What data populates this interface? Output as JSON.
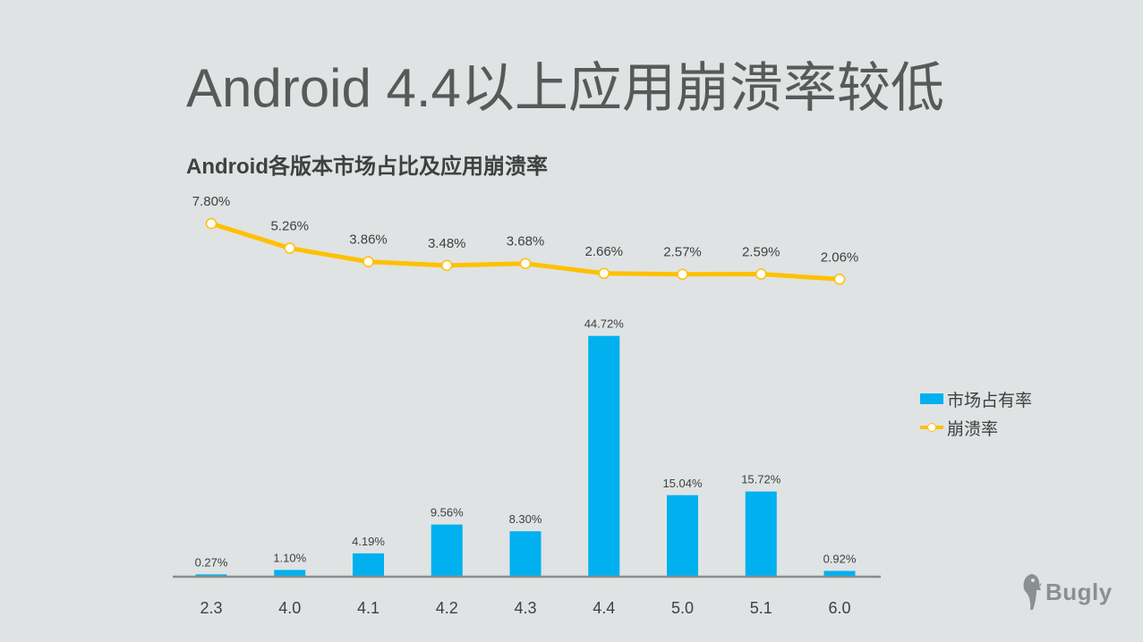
{
  "slide": {
    "title": "Android 4.4以上应用崩溃率较低"
  },
  "chart_data": {
    "type": "bar",
    "title": "Android各版本市场占比及应用崩溃率",
    "categories": [
      "2.3",
      "4.0",
      "4.1",
      "4.2",
      "4.3",
      "4.4",
      "5.0",
      "5.1",
      "6.0"
    ],
    "series": [
      {
        "name": "市场占有率",
        "type": "bar",
        "color": "#00b0ef",
        "values": [
          0.27,
          1.1,
          4.19,
          9.56,
          8.3,
          44.72,
          15.04,
          15.72,
          0.92
        ],
        "labels": [
          "0.27%",
          "1.10%",
          "4.19%",
          "9.56%",
          "8.30%",
          "44.72%",
          "15.04%",
          "15.72%",
          "0.92%"
        ]
      },
      {
        "name": "崩溃率",
        "type": "line",
        "color": "#ffc000",
        "values": [
          7.8,
          5.26,
          3.86,
          3.48,
          3.68,
          2.66,
          2.57,
          2.59,
          2.06
        ],
        "labels": [
          "7.80%",
          "5.26%",
          "3.86%",
          "3.48%",
          "3.68%",
          "2.66%",
          "2.57%",
          "2.59%",
          "2.06%"
        ]
      }
    ],
    "legend_position": "right",
    "grid": false
  },
  "logo": {
    "name": "bugly-logo-icon",
    "text": "Bugly"
  }
}
